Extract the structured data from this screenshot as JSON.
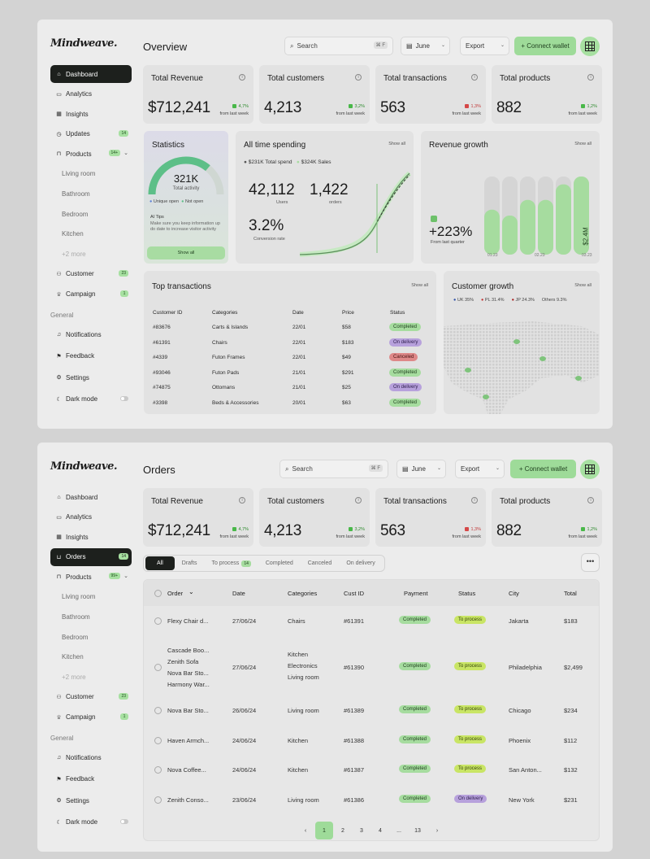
{
  "brand": "Mindweave.",
  "overview": {
    "title": "Overview",
    "search_placeholder": "Search",
    "search_kbd": "⌘ F",
    "date": "June",
    "export": "Export",
    "connect": "+ Connect wallet",
    "sidebar": [
      {
        "label": "Dashboard",
        "icon": "home-icon",
        "active": true
      },
      {
        "label": "Analytics",
        "icon": "analytics-icon"
      },
      {
        "label": "Insights",
        "icon": "insights-icon"
      },
      {
        "label": "Updates",
        "icon": "clock-icon",
        "badge": "14"
      },
      {
        "label": "Products",
        "icon": "bag-icon",
        "badge": "14+",
        "expanded": true
      },
      {
        "label": "Living room",
        "sub": true
      },
      {
        "label": "Bathroom",
        "sub": true
      },
      {
        "label": "Bedroom",
        "sub": true
      },
      {
        "label": "Kitchen",
        "sub": true
      },
      {
        "label": "+2 more",
        "sub": true,
        "more": true
      },
      {
        "label": "Customer",
        "icon": "users-icon",
        "badge": "23"
      },
      {
        "label": "Campaign",
        "icon": "trophy-icon",
        "badge": "1"
      }
    ],
    "general_label": "General",
    "general": [
      {
        "label": "Notifications",
        "icon": "bell-icon"
      },
      {
        "label": "Feedback",
        "icon": "flag-icon"
      },
      {
        "label": "Settings",
        "icon": "gear-icon"
      },
      {
        "label": "Dark mode",
        "icon": "moon-icon",
        "toggle": true
      }
    ],
    "kpis": [
      {
        "title": "Total Revenue",
        "value": "$712,241",
        "change": "4,7%",
        "dir": "up",
        "note": "from last week"
      },
      {
        "title": "Total customers",
        "value": "4,213",
        "change": "3,2%",
        "dir": "up",
        "note": "from last week"
      },
      {
        "title": "Total transactions",
        "value": "563",
        "change": "1,3%",
        "dir": "down",
        "note": "from last week"
      },
      {
        "title": "Total products",
        "value": "882",
        "change": "1,2%",
        "dir": "up",
        "note": "from last week"
      }
    ],
    "statistics": {
      "title": "Statistics",
      "value": "321K",
      "label": "Total activity",
      "legend_a": "Unique open",
      "legend_b": "Not open",
      "tips_title": "AI Tips",
      "tips_text": "Make sure you keep information up do date to increase visitor activity",
      "button": "Show all",
      "gauge_fraction": 0.72
    },
    "spending": {
      "title": "All time spending",
      "show_all": "Show all",
      "legend_a": "$231K Total spend",
      "legend_b": "$324K Sales",
      "users_value": "42,112",
      "users_label": "Users",
      "orders_value": "1,422",
      "orders_label": "orders",
      "conv_value": "3.2%",
      "conv_label": "Conversion rate"
    },
    "revenue_growth": {
      "title": "Revenue growth",
      "show_all": "Show all",
      "change": "+223%",
      "change_label": "From last quarter",
      "bar_label": "$2.4M",
      "x_labels": [
        "01.23",
        "02.23",
        "03.23"
      ],
      "bars": [
        {
          "bg": 0.8,
          "fg": 0.46
        },
        {
          "bg": 0.8,
          "fg": 0.4
        },
        {
          "bg": 0.8,
          "fg": 0.56
        },
        {
          "bg": 0.8,
          "fg": 0.56
        },
        {
          "bg": 0.8,
          "fg": 0.72
        },
        {
          "bg": 0.8,
          "fg": 0.8
        }
      ]
    },
    "transactions": {
      "title": "Top transactions",
      "show_all": "Show all",
      "columns": [
        "Customer ID",
        "Categories",
        "Date",
        "Price",
        "Status"
      ],
      "rows": [
        {
          "id": "#83676",
          "cat": "Carts & Islands",
          "date": "22/01",
          "price": "$58",
          "status": "Completed",
          "tone": "g"
        },
        {
          "id": "#61391",
          "cat": "Chairs",
          "date": "22/01",
          "price": "$183",
          "status": "On delivery",
          "tone": "p"
        },
        {
          "id": "#4339",
          "cat": "Futon Frames",
          "date": "22/01",
          "price": "$49",
          "status": "Canceled",
          "tone": "r"
        },
        {
          "id": "#93046",
          "cat": "Futon Pads",
          "date": "21/01",
          "price": "$291",
          "status": "Completed",
          "tone": "g"
        },
        {
          "id": "#74875",
          "cat": "Ottomans",
          "date": "21/01",
          "price": "$25",
          "status": "On delivery",
          "tone": "p"
        },
        {
          "id": "#3398",
          "cat": "Beds & Accessories",
          "date": "20/01",
          "price": "$63",
          "status": "Completed",
          "tone": "g"
        }
      ]
    },
    "customer_growth": {
      "title": "Customer growth",
      "show_all": "Show all",
      "legend": [
        {
          "label": "UK",
          "value": "35%"
        },
        {
          "label": "PL",
          "value": "31.4%"
        },
        {
          "label": "JP",
          "value": "24.3%"
        },
        {
          "label": "Others",
          "value": "9.3%"
        }
      ]
    }
  },
  "orders": {
    "title": "Orders",
    "search_placeholder": "Search",
    "search_kbd": "⌘ F",
    "date": "June",
    "export": "Export",
    "connect": "+ Connect wallet",
    "sidebar": [
      {
        "label": "Dashboard",
        "icon": "home-icon"
      },
      {
        "label": "Analytics",
        "icon": "analytics-icon"
      },
      {
        "label": "Insights",
        "icon": "insights-icon"
      },
      {
        "label": "Orders",
        "icon": "cart-icon",
        "badge": "14",
        "active": true
      },
      {
        "label": "Products",
        "icon": "bag-icon",
        "badge": "99+",
        "expanded": true
      },
      {
        "label": "Living room",
        "sub": true
      },
      {
        "label": "Bathroom",
        "sub": true
      },
      {
        "label": "Bedroom",
        "sub": true
      },
      {
        "label": "Kitchen",
        "sub": true
      },
      {
        "label": "+2 more",
        "sub": true,
        "more": true
      },
      {
        "label": "Customer",
        "icon": "users-icon",
        "badge": "23"
      },
      {
        "label": "Campaign",
        "icon": "trophy-icon",
        "badge": "1"
      }
    ],
    "general_label": "General",
    "general": [
      {
        "label": "Notifications",
        "icon": "bell-icon"
      },
      {
        "label": "Feedback",
        "icon": "flag-icon"
      },
      {
        "label": "Settings",
        "icon": "gear-icon"
      },
      {
        "label": "Dark mode",
        "icon": "moon-icon",
        "toggle": true
      }
    ],
    "kpis": [
      {
        "title": "Total Revenue",
        "value": "$712,241",
        "change": "4,7%",
        "dir": "up",
        "note": "from last week"
      },
      {
        "title": "Total customers",
        "value": "4,213",
        "change": "3,2%",
        "dir": "up",
        "note": "from last week"
      },
      {
        "title": "Total transactions",
        "value": "563",
        "change": "1,3%",
        "dir": "down",
        "note": "from last week"
      },
      {
        "title": "Total products",
        "value": "882",
        "change": "1,2%",
        "dir": "up",
        "note": "from last week"
      }
    ],
    "tabs": [
      {
        "label": "All",
        "active": true
      },
      {
        "label": "Drafts"
      },
      {
        "label": "To process",
        "badge": "14"
      },
      {
        "label": "Completed"
      },
      {
        "label": "Canceled"
      },
      {
        "label": "On delivery"
      }
    ],
    "more": "•••",
    "columns": [
      "Order",
      "Date",
      "Categories",
      "Cust ID",
      "Payment",
      "Status",
      "City",
      "Total"
    ],
    "rows": [
      {
        "items": [
          "Flexy Chair d..."
        ],
        "date": "27/06/24",
        "cats": [
          "Chairs"
        ],
        "cust": "#61391",
        "payment": "Completed",
        "status": "To process",
        "stone": "y",
        "city": "Jakarta",
        "total": "$183"
      },
      {
        "items": [
          "Cascade Boo...",
          "Zenith Sofa",
          "Nova Bar Sto...",
          "Harmony War..."
        ],
        "date": "27/06/24",
        "cats": [
          "Kitchen",
          "Electronics",
          "Living room"
        ],
        "cust": "#61390",
        "payment": "Completed",
        "status": "To process",
        "stone": "y",
        "city": "Philadelphia",
        "total": "$2,499"
      },
      {
        "items": [
          "Nova Bar Sto..."
        ],
        "date": "26/06/24",
        "cats": [
          "Living room"
        ],
        "cust": "#61389",
        "payment": "Completed",
        "status": "To process",
        "stone": "y",
        "city": "Chicago",
        "total": "$234"
      },
      {
        "items": [
          "Haven Armch..."
        ],
        "date": "24/06/24",
        "cats": [
          "Kitchen"
        ],
        "cust": "#61388",
        "payment": "Completed",
        "status": "To process",
        "stone": "y",
        "city": "Phoenix",
        "total": "$112"
      },
      {
        "items": [
          "Nova Coffee..."
        ],
        "date": "24/06/24",
        "cats": [
          "Kitchen"
        ],
        "cust": "#61387",
        "payment": "Completed",
        "status": "To process",
        "stone": "y",
        "city": "San Anton...",
        "total": "$132"
      },
      {
        "items": [
          "Zenith Conso..."
        ],
        "date": "23/06/24",
        "cats": [
          "Living room"
        ],
        "cust": "#61386",
        "payment": "Completed",
        "status": "On delivery",
        "stone": "p",
        "city": "New York",
        "total": "$231"
      }
    ],
    "pagination": [
      "‹",
      "1",
      "2",
      "3",
      "4",
      "...",
      "13",
      "›"
    ],
    "current_page": "1"
  },
  "colors": {
    "accent": "#9edb99",
    "dark": "#1d201d",
    "purple": "#b7a1dc",
    "red": "#de8888",
    "lime": "#c9e565"
  }
}
